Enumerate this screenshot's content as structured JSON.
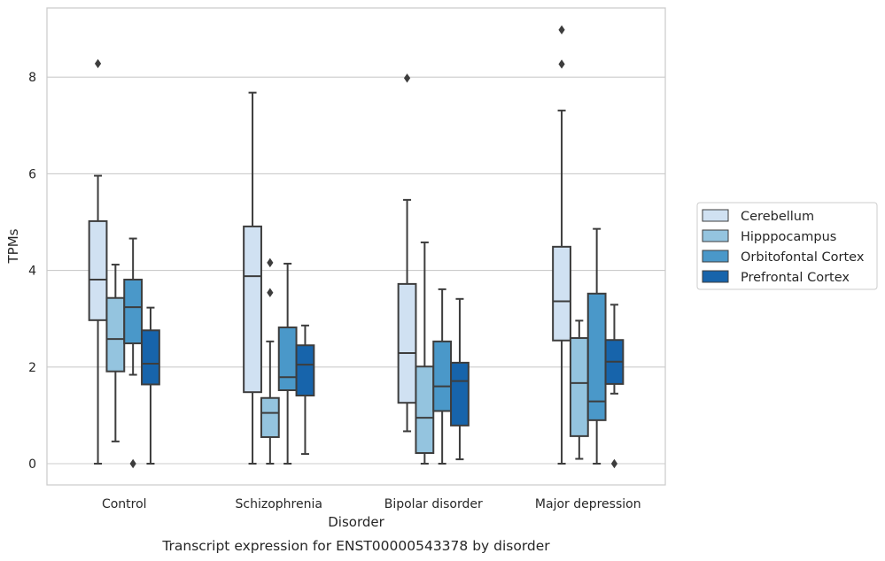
{
  "chart_data": {
    "type": "box",
    "caption": "Transcript expression for ENST00000543378 by disorder",
    "xlabel": "Disorder",
    "ylabel": "TPMs",
    "ylim": [
      -0.38,
      9.5
    ],
    "yticks": [
      0,
      2,
      4,
      6,
      8
    ],
    "grid": "horizontal",
    "legend_position": "right",
    "categories": [
      "Control",
      "Schizophrenia",
      "Bipolar disorder",
      "Major depression"
    ],
    "series": [
      {
        "name": "Cerebellum",
        "color": "#d0e1f2",
        "boxes": [
          {
            "whisker_low": 0,
            "q1": 2.97,
            "median": 3.81,
            "q3": 5.02,
            "whisker_high": 5.96,
            "outliers": [
              8.28
            ]
          },
          {
            "whisker_low": 0,
            "q1": 1.48,
            "median": 3.88,
            "q3": 4.91,
            "whisker_high": 7.68,
            "outliers": []
          },
          {
            "whisker_low": 0.67,
            "q1": 1.26,
            "median": 2.29,
            "q3": 3.72,
            "whisker_high": 5.46,
            "outliers": [
              7.98
            ]
          },
          {
            "whisker_low": 0,
            "q1": 2.55,
            "median": 3.36,
            "q3": 4.49,
            "whisker_high": 7.31,
            "outliers": [
              8.27,
              8.98
            ]
          }
        ]
      },
      {
        "name": "Hipppocampus",
        "color": "#94c4df",
        "boxes": [
          {
            "whisker_low": 0.46,
            "q1": 1.91,
            "median": 2.58,
            "q3": 3.43,
            "whisker_high": 4.12,
            "outliers": []
          },
          {
            "whisker_low": 0,
            "q1": 0.55,
            "median": 1.05,
            "q3": 1.36,
            "whisker_high": 2.53,
            "outliers": [
              3.54,
              4.16
            ]
          },
          {
            "whisker_low": 0,
            "q1": 0.22,
            "median": 0.95,
            "q3": 2.01,
            "whisker_high": 4.58,
            "outliers": []
          },
          {
            "whisker_low": 0.1,
            "q1": 0.57,
            "median": 1.67,
            "q3": 2.6,
            "whisker_high": 2.96,
            "outliers": []
          }
        ]
      },
      {
        "name": "Orbitofontal Cortex",
        "color": "#4a98c9",
        "boxes": [
          {
            "whisker_low": 1.84,
            "q1": 2.49,
            "median": 3.24,
            "q3": 3.81,
            "whisker_high": 4.66,
            "outliers": [
              0
            ]
          },
          {
            "whisker_low": 0,
            "q1": 1.52,
            "median": 1.79,
            "q3": 2.82,
            "whisker_high": 4.14,
            "outliers": []
          },
          {
            "whisker_low": 0,
            "q1": 1.09,
            "median": 1.6,
            "q3": 2.53,
            "whisker_high": 3.61,
            "outliers": []
          },
          {
            "whisker_low": 0,
            "q1": 0.9,
            "median": 1.29,
            "q3": 3.52,
            "whisker_high": 4.86,
            "outliers": []
          }
        ]
      },
      {
        "name": "Prefrontal Cortex",
        "color": "#1764ab",
        "boxes": [
          {
            "whisker_low": 0,
            "q1": 1.64,
            "median": 2.07,
            "q3": 2.76,
            "whisker_high": 3.23,
            "outliers": []
          },
          {
            "whisker_low": 0.2,
            "q1": 1.41,
            "median": 2.05,
            "q3": 2.45,
            "whisker_high": 2.86,
            "outliers": []
          },
          {
            "whisker_low": 0.09,
            "q1": 0.79,
            "median": 1.71,
            "q3": 2.09,
            "whisker_high": 3.41,
            "outliers": []
          },
          {
            "whisker_low": 1.45,
            "q1": 1.65,
            "median": 2.11,
            "q3": 2.56,
            "whisker_high": 3.29,
            "outliers": [
              0
            ]
          }
        ]
      }
    ]
  }
}
